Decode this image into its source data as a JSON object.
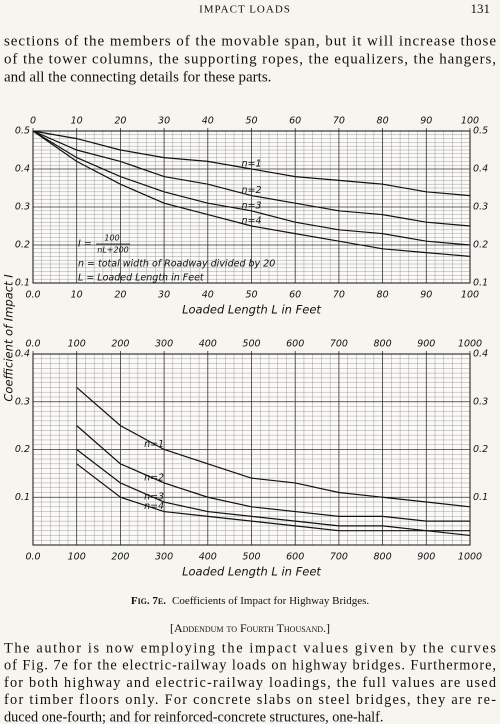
{
  "header": {
    "title": "IMPACT LOADS",
    "page": "131"
  },
  "paragraph_1": [
    "sections of the members of the movable span, but it will increase those",
    "of the tower columns, the supporting ropes, the equalizers, the hangers,",
    "and all the connecting details for these parts."
  ],
  "chart_data": [
    {
      "type": "line",
      "y_label": "Coefficient of Impact I",
      "x_label": "Loaded Length L in Feet",
      "formula_lhs": "I =",
      "formula_numerator": "100",
      "formula_denominator": "nL+200",
      "annotations": [
        "n = total width of Roadway divided by 20",
        "L = Loaded Length in Feet"
      ],
      "x": [
        0,
        10,
        20,
        30,
        40,
        50,
        60,
        70,
        80,
        90,
        100
      ],
      "series": [
        {
          "name": "n=1",
          "color": "#111111",
          "values": [
            0.5,
            0.48,
            0.45,
            0.43,
            0.42,
            0.4,
            0.38,
            0.37,
            0.36,
            0.34,
            0.33
          ]
        },
        {
          "name": "n=2",
          "color": "#111111",
          "values": [
            0.5,
            0.45,
            0.42,
            0.38,
            0.36,
            0.33,
            0.31,
            0.29,
            0.28,
            0.26,
            0.25
          ]
        },
        {
          "name": "n=3",
          "color": "#111111",
          "values": [
            0.5,
            0.43,
            0.38,
            0.34,
            0.31,
            0.29,
            0.26,
            0.24,
            0.23,
            0.21,
            0.2
          ]
        },
        {
          "name": "n=4",
          "color": "#111111",
          "values": [
            0.5,
            0.42,
            0.36,
            0.31,
            0.28,
            0.25,
            0.23,
            0.21,
            0.19,
            0.18,
            0.17
          ]
        }
      ],
      "xlim": [
        0,
        100
      ],
      "ylim": [
        0.1,
        0.5
      ],
      "xticks": [
        {
          "value": 0,
          "label": "0.0"
        },
        10,
        20,
        30,
        40,
        50,
        60,
        70,
        80,
        90,
        100
      ],
      "x2ticks": [
        0,
        10,
        20,
        30,
        40,
        50,
        60,
        70,
        80,
        90,
        100
      ],
      "yticks": [
        0.1,
        0.2,
        0.3,
        0.4,
        0.5
      ],
      "grid": true
    },
    {
      "type": "line",
      "x_label": "Loaded Length L in Feet",
      "x": [
        100,
        200,
        300,
        400,
        500,
        600,
        700,
        800,
        900,
        1000
      ],
      "series": [
        {
          "name": "n=1",
          "color": "#111111",
          "values": [
            0.33,
            0.25,
            0.2,
            0.17,
            0.14,
            0.13,
            0.11,
            0.1,
            0.09,
            0.08
          ]
        },
        {
          "name": "n=2",
          "color": "#111111",
          "values": [
            0.25,
            0.17,
            0.13,
            0.1,
            0.08,
            0.07,
            0.06,
            0.06,
            0.05,
            0.05
          ]
        },
        {
          "name": "n=3",
          "color": "#111111",
          "values": [
            0.2,
            0.13,
            0.09,
            0.07,
            0.06,
            0.05,
            0.04,
            0.04,
            0.03,
            0.03
          ]
        },
        {
          "name": "n=4",
          "color": "#111111",
          "values": [
            0.17,
            0.1,
            0.07,
            0.06,
            0.05,
            0.04,
            0.03,
            0.03,
            0.03,
            0.02
          ]
        }
      ],
      "xlim": [
        0,
        1000
      ],
      "ylim": [
        0,
        0.4
      ],
      "xticks": [
        {
          "value": 0,
          "label": "0.0"
        },
        100,
        200,
        300,
        400,
        500,
        600,
        700,
        800,
        900,
        1000
      ],
      "x2ticks": [
        {
          "value": 0,
          "label": "0.0"
        },
        100,
        200,
        300,
        400,
        500,
        600,
        700,
        800,
        900,
        1000
      ],
      "yticks": [
        0.1,
        0.2,
        0.3,
        0.4
      ],
      "grid": true
    }
  ],
  "figure": {
    "caption_label": "Fig. 7e.",
    "caption": "Coefficients of Impact for Highway Bridges.",
    "addendum": "[Addendum to Fourth Thousand.]"
  },
  "paragraph_2": [
    "The author is now employing the impact values given by the curves",
    "of Fig. 7e for the electric-railway loads on highway bridges.  Furthermore,",
    "for both highway and electric-railway loadings, the full values are used",
    "for timber floors only.  For concrete slabs on steel bridges, they are re-",
    "duced one-fourth; and for reinforced-concrete structures, one-half."
  ]
}
